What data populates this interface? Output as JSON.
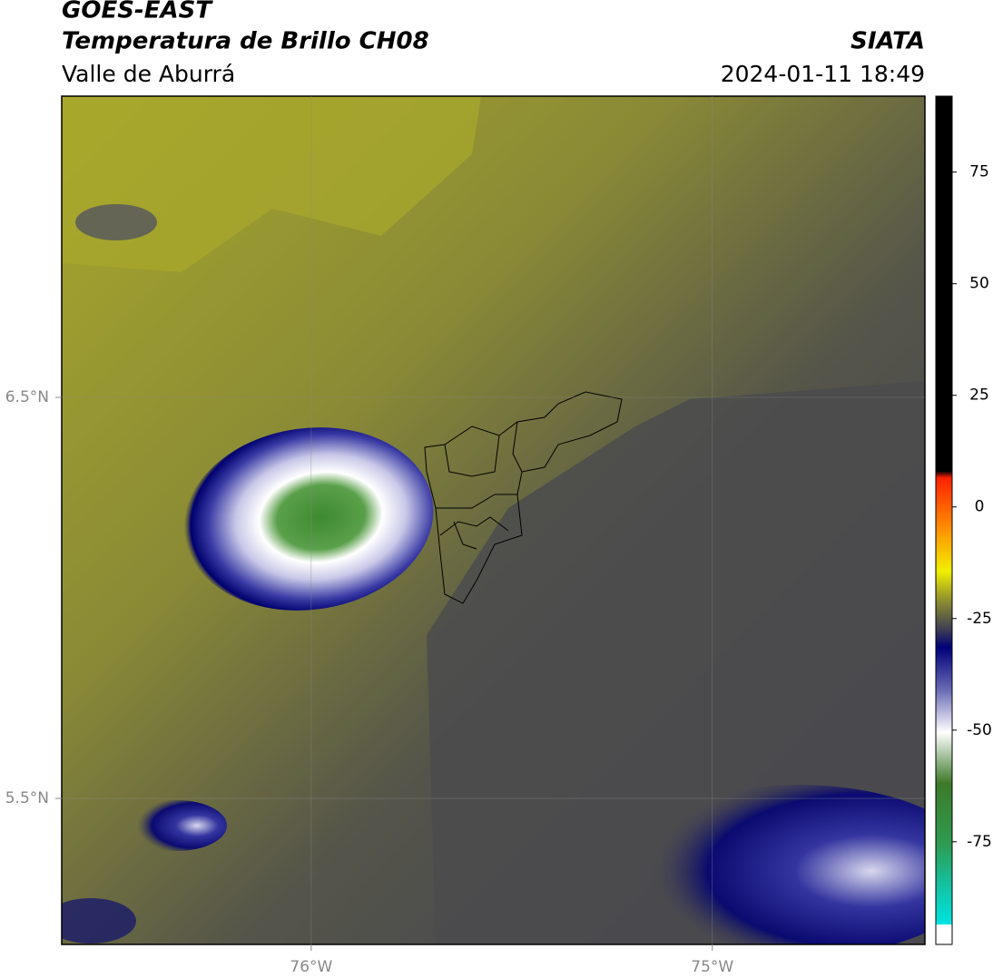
{
  "header": {
    "title": "GOES-EAST",
    "subtitle": "Temperatura de Brillo CH08",
    "region": "Valle de Aburrá",
    "agency": "SIATA",
    "datetime": "2024-01-11 18:49"
  },
  "map": {
    "lonlim": [
      -76.622,
      -74.47
    ],
    "latlim": [
      5.136,
      7.251
    ],
    "lon_ticks": [
      {
        "value": -76,
        "label": "76°W"
      },
      {
        "value": -75,
        "label": "75°W"
      }
    ],
    "lat_ticks": [
      {
        "value": 6.5,
        "label": "6.5°N"
      },
      {
        "value": 5.5,
        "label": "5.5°N"
      }
    ],
    "grid": true
  },
  "colorbar": {
    "ylim": [
      -98,
      92
    ],
    "yticks": [
      75,
      50,
      25,
      0,
      -25,
      -50,
      -75
    ]
  }
}
